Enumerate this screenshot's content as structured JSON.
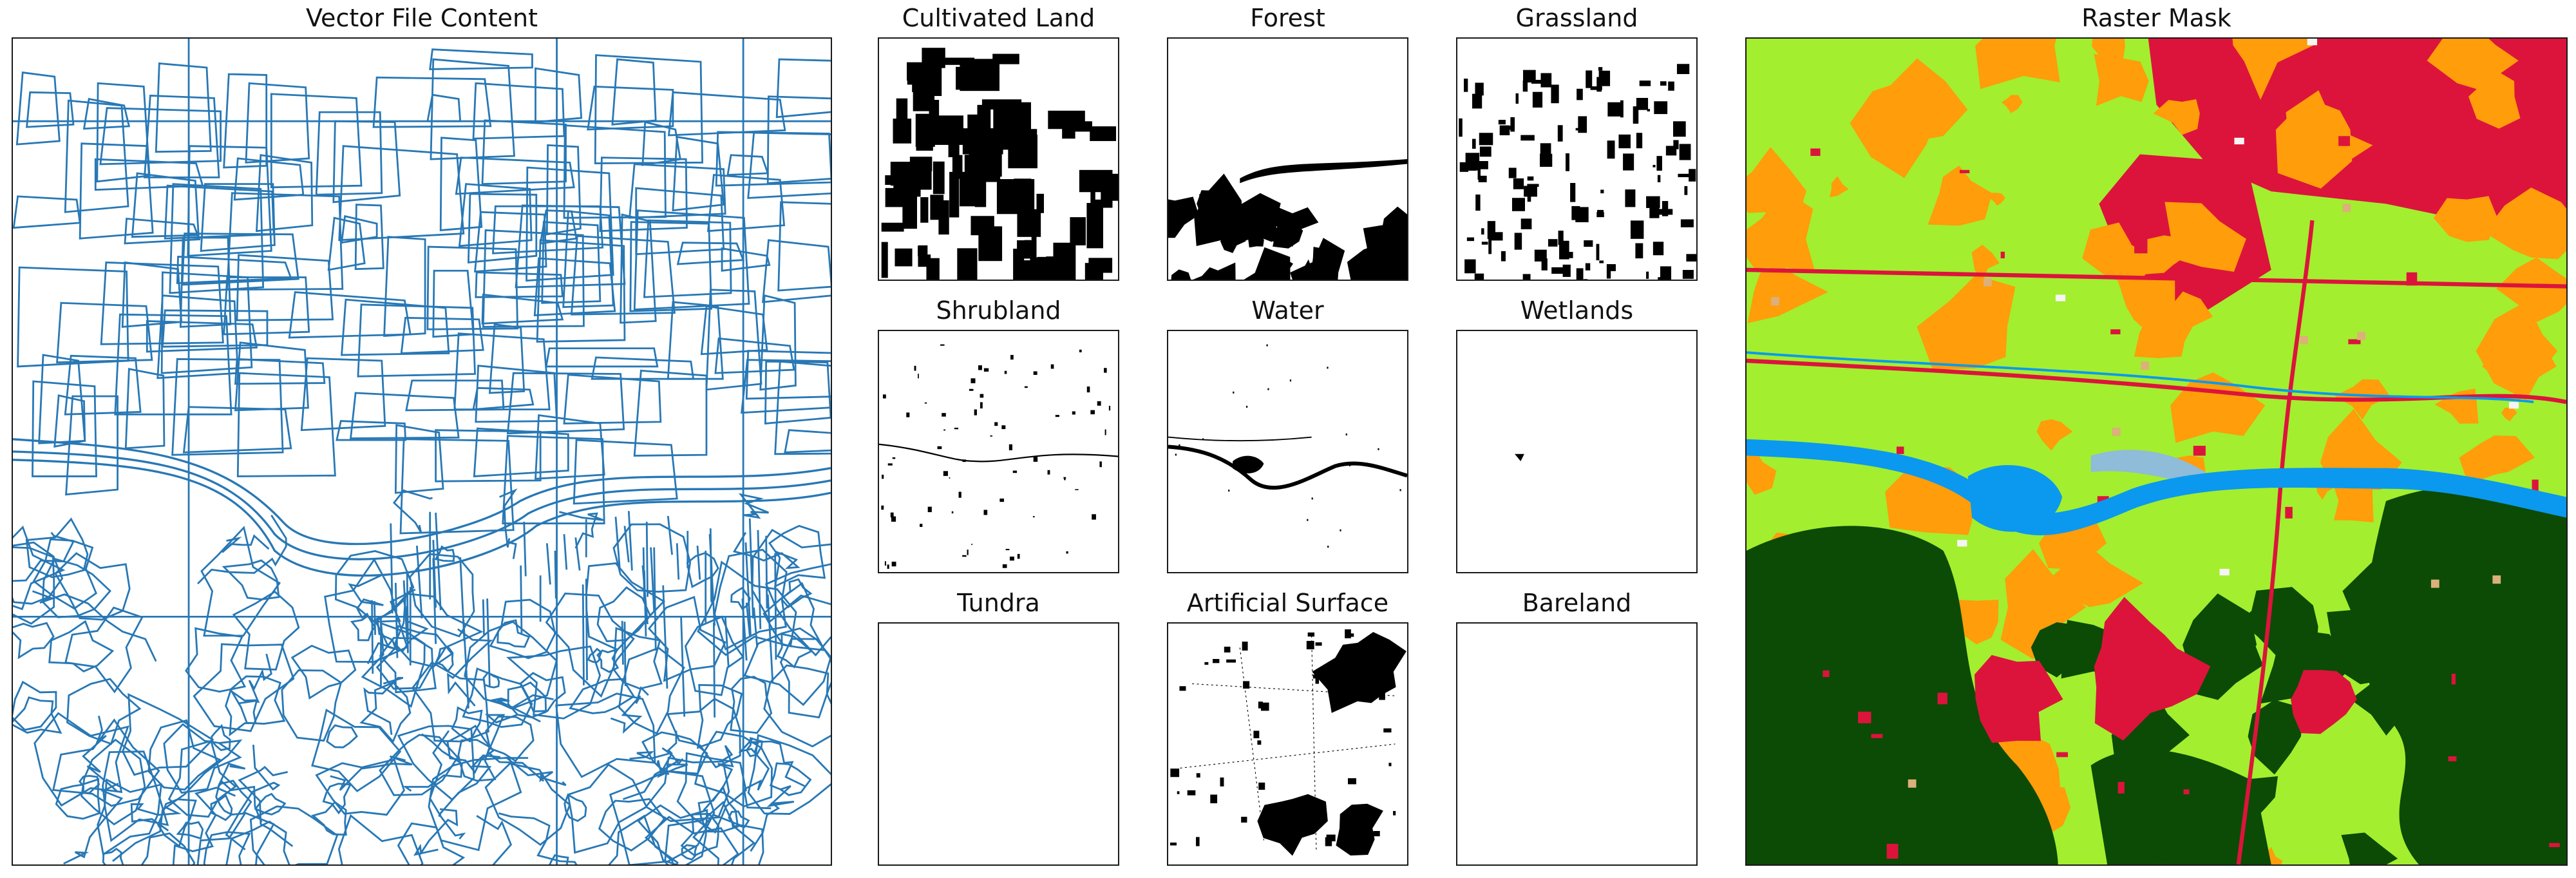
{
  "figure": {
    "vector_panel": {
      "title": "Vector File Content",
      "line_color": "#2878b5"
    },
    "class_masks": [
      {
        "key": "cultivated",
        "title": "Cultivated Land"
      },
      {
        "key": "forest",
        "title": "Forest"
      },
      {
        "key": "grassland",
        "title": "Grassland"
      },
      {
        "key": "shrubland",
        "title": "Shrubland"
      },
      {
        "key": "water",
        "title": "Water"
      },
      {
        "key": "wetlands",
        "title": "Wetlands"
      },
      {
        "key": "tundra",
        "title": "Tundra"
      },
      {
        "key": "artificial",
        "title": "Artificial Surface"
      },
      {
        "key": "bareland",
        "title": "Bareland"
      }
    ],
    "raster_panel": {
      "title": "Raster Mask",
      "class_colors": {
        "cultivated": "#a3ee2f",
        "forest": "#0b4b05",
        "grassland": "#ff9d0a",
        "shrubland": "#dcb07a",
        "water": "#0a99ee",
        "wetlands": "#8fbcd8",
        "artificial": "#dc143c",
        "bareland": "#f5f5f5"
      }
    }
  }
}
